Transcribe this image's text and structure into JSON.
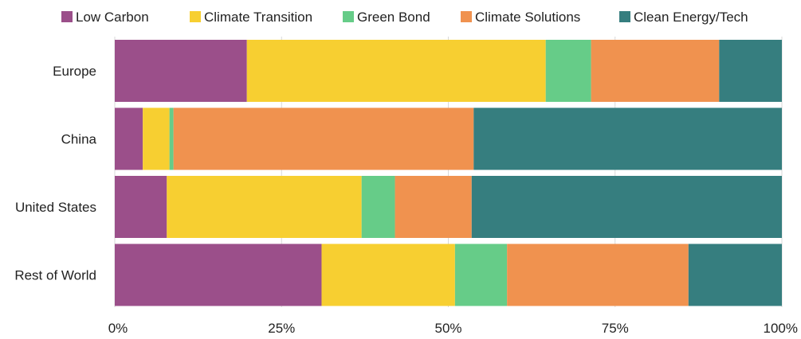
{
  "chart_data": {
    "type": "bar",
    "orientation": "horizontal",
    "stacked": true,
    "normalized": true,
    "categories": [
      "Europe",
      "China",
      "United States",
      "Rest of World"
    ],
    "series": [
      {
        "name": "Low Carbon",
        "color": "#9b4f8a",
        "values": [
          19.8,
          4.2,
          7.8,
          31.0
        ]
      },
      {
        "name": "Climate Transition",
        "color": "#f7cf31",
        "values": [
          44.8,
          4.0,
          29.2,
          20.0
        ]
      },
      {
        "name": "Green Bond",
        "color": "#66cc88",
        "values": [
          6.8,
          0.6,
          5.0,
          7.8
        ]
      },
      {
        "name": "Climate Solutions",
        "color": "#f0924f",
        "values": [
          19.2,
          45.0,
          11.5,
          27.2
        ]
      },
      {
        "name": "Clean Energy/Tech",
        "color": "#367e7f",
        "values": [
          9.4,
          46.2,
          46.5,
          14.0
        ]
      }
    ],
    "xlim": [
      0,
      100
    ],
    "xticks": [
      0,
      25,
      50,
      75,
      100
    ],
    "xtick_labels": [
      "0%",
      "25%",
      "50%",
      "75%",
      "100%"
    ],
    "legend_position": "top",
    "grid": "vertical"
  }
}
